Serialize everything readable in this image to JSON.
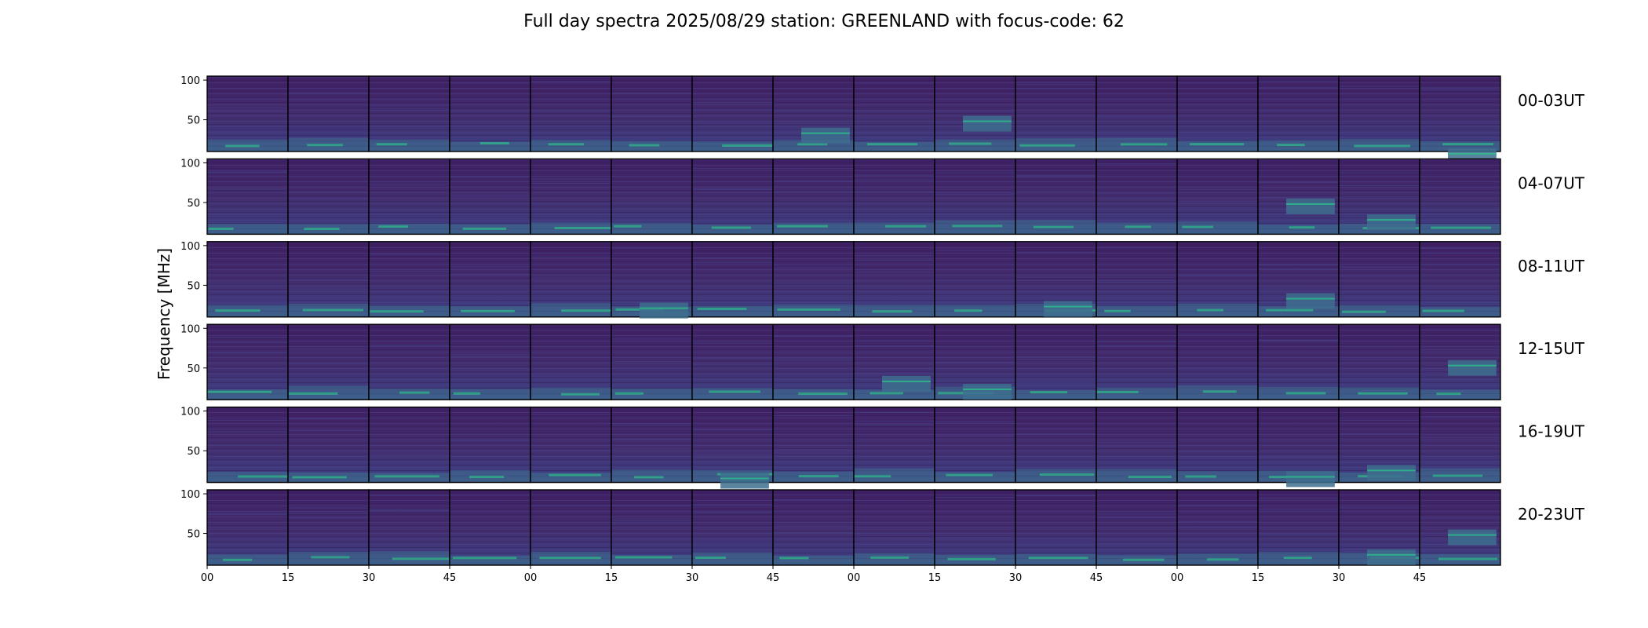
{
  "chart_data": {
    "type": "heatmap",
    "title": "Full day spectra 2025/08/29 station: GREENLAND with focus-code: 62",
    "ylabel": "Frequency [MHz]",
    "xlabel": "",
    "ylim": [
      10,
      105
    ],
    "yticks": [
      50,
      100
    ],
    "ytick_labels": [
      "50",
      "100"
    ],
    "xticks": [
      0,
      15,
      30,
      45,
      60,
      75,
      90,
      105,
      120,
      135,
      150,
      165,
      180,
      195,
      210,
      225
    ],
    "xtick_labels": [
      "00",
      "15",
      "30",
      "45",
      "00",
      "15",
      "30",
      "45",
      "00",
      "15",
      "30",
      "45",
      "00",
      "15",
      "30",
      "45"
    ],
    "xlim": [
      0,
      240
    ],
    "rows": [
      {
        "label": "00-03UT",
        "highlights": [
          [
            7,
            40
          ],
          [
            9,
            55
          ],
          [
            15,
            14
          ]
        ]
      },
      {
        "label": "04-07UT",
        "highlights": [
          [
            13,
            55
          ],
          [
            14,
            35
          ]
        ]
      },
      {
        "label": "08-11UT",
        "highlights": [
          [
            5,
            28
          ],
          [
            10,
            30
          ],
          [
            13,
            40
          ]
        ]
      },
      {
        "label": "12-15UT",
        "highlights": [
          [
            8,
            40
          ],
          [
            9,
            30
          ],
          [
            15,
            60
          ]
        ]
      },
      {
        "label": "16-19UT",
        "highlights": [
          [
            6,
            22
          ],
          [
            13,
            24
          ],
          [
            14,
            32
          ]
        ]
      },
      {
        "label": "20-23UT",
        "highlights": [
          [
            14,
            30
          ],
          [
            15,
            55
          ]
        ]
      }
    ],
    "panels_per_row": 16,
    "minutes_per_panel": 15,
    "colormap": "viridis"
  },
  "colors": {
    "low": "#3b1d5a",
    "mid": "#453a80",
    "band": "#3e6f8e",
    "hot": "#2fb58a",
    "bright": "#9fe04b"
  }
}
